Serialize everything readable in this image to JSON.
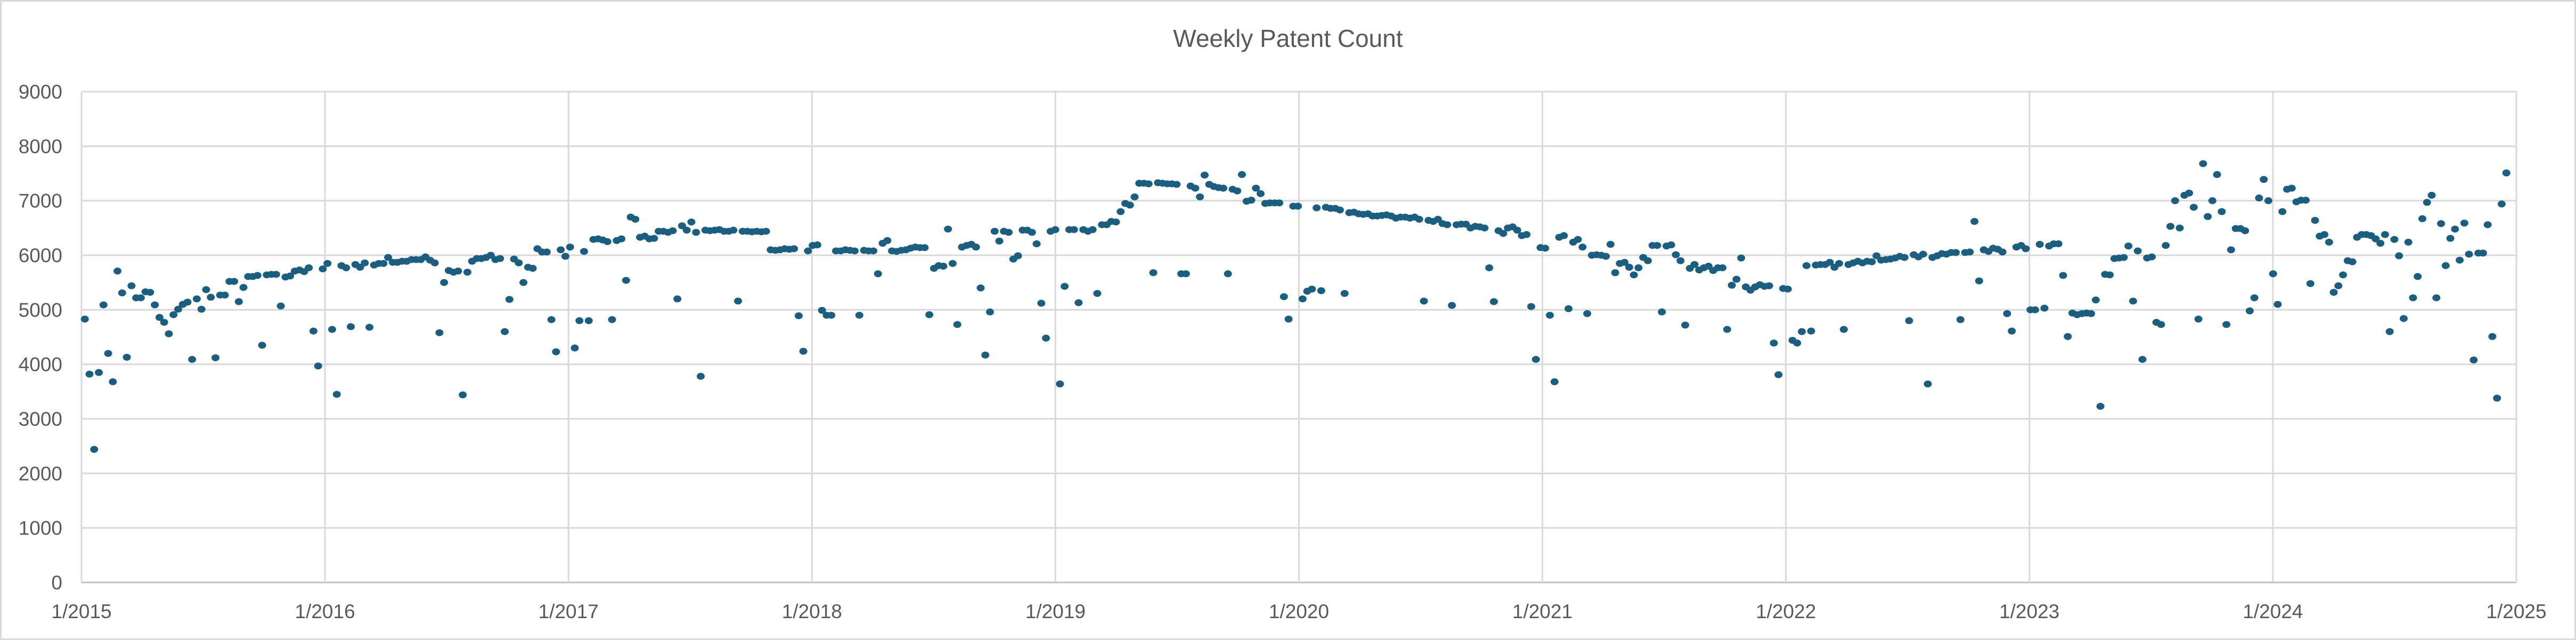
{
  "chart_data": {
    "type": "scatter",
    "title": "Weekly Patent Count",
    "xlabel": "",
    "ylabel": "",
    "ylim": [
      0,
      9000
    ],
    "yticks": [
      0,
      1000,
      2000,
      3000,
      4000,
      5000,
      6000,
      7000,
      8000,
      9000
    ],
    "xlim": [
      "2015-01-01",
      "2025-01-01"
    ],
    "xticks": [
      "1/2015",
      "1/2016",
      "1/2017",
      "1/2018",
      "1/2019",
      "1/2020",
      "1/2021",
      "1/2022",
      "1/2023",
      "1/2024",
      "1/2025"
    ],
    "grid": true,
    "legend": "none",
    "marker_color": "#1b5e80",
    "series": [
      {
        "name": "Weekly Patent Count",
        "start_date": "2015-01-06",
        "interval_days": 7,
        "values": [
          4830,
          3820,
          2440,
          3850,
          5090,
          4200,
          3680,
          5710,
          5310,
          4130,
          5440,
          5220,
          5220,
          5330,
          5320,
          5090,
          4860,
          4770,
          4560,
          4910,
          5010,
          5100,
          5140,
          4090,
          5200,
          5010,
          5370,
          5230,
          4120,
          5270,
          5270,
          5520,
          5520,
          5150,
          5410,
          5610,
          5610,
          5630,
          4350,
          5640,
          5650,
          5650,
          5070,
          5600,
          5620,
          5710,
          5730,
          5700,
          5770,
          4610,
          3970,
          5750,
          5850,
          4640,
          3450,
          5810,
          5770,
          4690,
          5830,
          5780,
          5860,
          4680,
          5820,
          5850,
          5850,
          5960,
          5870,
          5870,
          5890,
          5890,
          5920,
          5920,
          5920,
          5970,
          5910,
          5860,
          4580,
          5500,
          5720,
          5690,
          5710,
          3440,
          5690,
          5890,
          5940,
          5940,
          5960,
          6000,
          5920,
          5940,
          4600,
          5190,
          5930,
          5860,
          5500,
          5780,
          5760,
          6120,
          6060,
          6060,
          4820,
          4230,
          6100,
          5980,
          6150,
          4300,
          4800,
          6070,
          4800,
          6290,
          6300,
          6280,
          6250,
          4820,
          6270,
          6300,
          5540,
          6700,
          6660,
          6330,
          6350,
          6300,
          6310,
          6440,
          6440,
          6420,
          6450,
          5200,
          6540,
          6460,
          6610,
          6420,
          3780,
          6460,
          6450,
          6460,
          6470,
          6440,
          6440,
          6460,
          5160,
          6440,
          6440,
          6430,
          6440,
          6430,
          6440,
          6100,
          6090,
          6100,
          6120,
          6110,
          6120,
          4890,
          4240,
          6080,
          6180,
          6190,
          4990,
          4900,
          4900,
          6080,
          6080,
          6100,
          6090,
          6080,
          4900,
          6090,
          6080,
          6080,
          5660,
          6220,
          6270,
          6080,
          6070,
          6090,
          6100,
          6130,
          6150,
          6140,
          6140,
          4910,
          5760,
          5810,
          5800,
          6480,
          5850,
          4730,
          6150,
          6180,
          6200,
          6150,
          5400,
          4170,
          4960,
          6440,
          6260,
          6440,
          6420,
          5930,
          5990,
          6460,
          6460,
          6420,
          6210,
          5120,
          4480,
          6440,
          6470,
          3640,
          5430,
          6470,
          6470,
          5130,
          6470,
          6440,
          6470,
          5300,
          6560,
          6560,
          6620,
          6610,
          6800,
          6950,
          6920,
          7070,
          7320,
          7320,
          7310,
          5680,
          7330,
          7320,
          7310,
          7310,
          7300,
          5660,
          5660,
          7270,
          7230,
          7070,
          7470,
          7300,
          7260,
          7240,
          7230,
          5660,
          7210,
          7180,
          7480,
          6990,
          7010,
          7230,
          7130,
          6950,
          6960,
          6960,
          6960,
          5240,
          4830,
          6900,
          6900,
          5200,
          5340,
          5380,
          6870,
          5350,
          6880,
          6860,
          6860,
          6830,
          5300,
          6780,
          6790,
          6760,
          6750,
          6760,
          6720,
          6720,
          6730,
          6740,
          6720,
          6680,
          6700,
          6700,
          6680,
          6700,
          6660,
          5160,
          6640,
          6620,
          6660,
          6580,
          6560,
          5080,
          6560,
          6570,
          6570,
          6500,
          6530,
          6520,
          6500,
          5770,
          5150,
          6450,
          6400,
          6500,
          6520,
          6460,
          6360,
          6380,
          5060,
          4090,
          6140,
          6130,
          4900,
          3680,
          6330,
          6360,
          5020,
          6240,
          6290,
          6150,
          4930,
          6000,
          6010,
          6000,
          5980,
          6200,
          5680,
          5850,
          5870,
          5780,
          5640,
          5770,
          5960,
          5900,
          6180,
          6180,
          4960,
          6170,
          6190,
          6010,
          5900,
          4720,
          5760,
          5830,
          5730,
          5770,
          5800,
          5720,
          5770,
          5770,
          4640,
          5450,
          5560,
          5950,
          5420,
          5360,
          5420,
          5460,
          5430,
          5440,
          4390,
          3810,
          5390,
          5380,
          4440,
          4390,
          4600,
          5810,
          4610,
          5820,
          5830,
          5830,
          5870,
          5780,
          5850,
          4640,
          5830,
          5860,
          5890,
          5860,
          5890,
          5880,
          5990,
          5910,
          5920,
          5930,
          5950,
          5980,
          5960,
          4800,
          6010,
          5970,
          6020,
          3640,
          5960,
          5990,
          6030,
          6020,
          6050,
          6050,
          4820,
          6050,
          6060,
          6620,
          5530,
          6100,
          6070,
          6130,
          6110,
          6060,
          4930,
          4610,
          6150,
          6180,
          6120,
          5000,
          5000,
          6200,
          5030,
          6170,
          6210,
          6210,
          5630,
          4510,
          4940,
          4910,
          4930,
          4940,
          4930,
          5180,
          3230,
          5650,
          5640,
          5940,
          5950,
          5960,
          6170,
          5160,
          6080,
          4090,
          5950,
          5970,
          4770,
          4730,
          6180,
          6530,
          7000,
          6500,
          7100,
          7140,
          6880,
          4830,
          7680,
          6710,
          7000,
          7480,
          6800,
          4730,
          6100,
          6490,
          6490,
          6450,
          4980,
          5220,
          7050,
          7390,
          7000,
          5660,
          5100,
          6800,
          7210,
          7230,
          6980,
          7010,
          7010,
          5480,
          6640,
          6350,
          6380,
          6240,
          5320,
          5440,
          5640,
          5900,
          5880,
          6330,
          6380,
          6380,
          6360,
          6300,
          6220,
          6380,
          4600,
          6290,
          5990,
          4840,
          6240,
          5220,
          5610,
          6670,
          6970,
          7100,
          5220,
          6580,
          5810,
          6310,
          6480,
          5910,
          6590,
          6020,
          4080,
          6040,
          6040,
          6560,
          4510,
          3380,
          6940,
          7510
        ]
      }
    ]
  }
}
